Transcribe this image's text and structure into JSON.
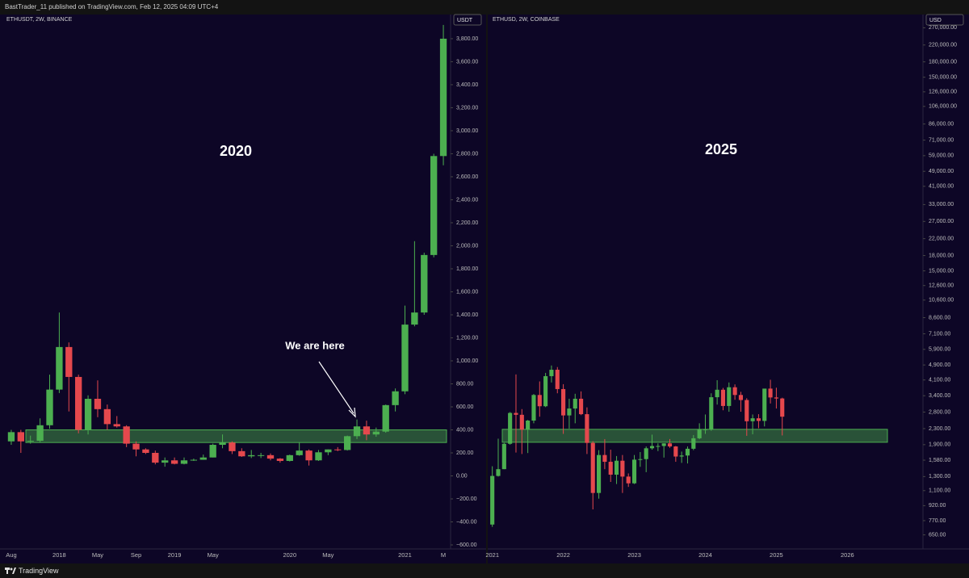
{
  "header": "BastTrader_11 published on TradingView.com, Feb 12, 2025 04:09 UTC+4",
  "footer": "TradingView",
  "chart_data": [
    {
      "type": "candlestick",
      "title": "ETHUSDT, 2W, BINANCE",
      "unit": "USDT",
      "log": false,
      "up_color": "#4caf50",
      "down_color": "#e5484d",
      "zone": [
        290,
        400
      ],
      "zone_color": "#4caf50",
      "annotations": [
        "2020",
        "We are here"
      ],
      "categories": [
        "Aug",
        null,
        null,
        null,
        null,
        "2018",
        null,
        null,
        null,
        "May",
        null,
        null,
        null,
        "Sep",
        null,
        null,
        null,
        "2019",
        null,
        null,
        null,
        "May",
        null,
        null,
        null,
        null,
        null,
        null,
        null,
        "2020",
        null,
        null,
        null,
        "May",
        null,
        null,
        null,
        null,
        null,
        null,
        null,
        "2021",
        null,
        null,
        null,
        "M"
      ],
      "open": [
        300,
        380,
        300,
        305,
        440,
        750,
        1120,
        860,
        400,
        670,
        580,
        450,
        430,
        280,
        230,
        200,
        115,
        135,
        105,
        135,
        140,
        160,
        270,
        290,
        215,
        170,
        180,
        180,
        150,
        130,
        180,
        220,
        135,
        205,
        230,
        225,
        345,
        430,
        360,
        385,
        615,
        735,
        1315,
        1420,
        1920,
        2780
      ],
      "high": [
        400,
        400,
        350,
        500,
        880,
        1420,
        1160,
        880,
        700,
        830,
        620,
        520,
        440,
        300,
        240,
        220,
        160,
        160,
        160,
        150,
        185,
        280,
        360,
        300,
        240,
        225,
        200,
        195,
        155,
        185,
        290,
        230,
        225,
        230,
        250,
        350,
        490,
        480,
        420,
        620,
        760,
        1480,
        2040,
        1940,
        2800,
        3920
      ],
      "low": [
        270,
        200,
        280,
        290,
        410,
        720,
        560,
        370,
        360,
        510,
        400,
        420,
        250,
        170,
        190,
        100,
        80,
        100,
        100,
        130,
        140,
        160,
        240,
        190,
        165,
        155,
        155,
        135,
        115,
        125,
        175,
        90,
        130,
        180,
        215,
        220,
        320,
        310,
        340,
        375,
        560,
        710,
        1300,
        1400,
        1900,
        2700
      ],
      "close": [
        380,
        300,
        305,
        440,
        750,
        1120,
        860,
        400,
        670,
        580,
        450,
        430,
        280,
        230,
        200,
        115,
        135,
        105,
        135,
        140,
        160,
        270,
        290,
        215,
        170,
        180,
        180,
        150,
        130,
        180,
        220,
        135,
        205,
        230,
        225,
        345,
        430,
        360,
        385,
        615,
        735,
        1315,
        1420,
        1920,
        2780,
        3800
      ],
      "ylim": [
        -635,
        4010
      ],
      "yticks": [
        {
          "value": -600,
          "label": "−600.00"
        },
        {
          "value": -400,
          "label": "−400.00"
        },
        {
          "value": -200,
          "label": "−200.00"
        },
        {
          "value": 0,
          "label": "0.00"
        },
        {
          "value": 200,
          "label": "200.00"
        },
        {
          "value": 400,
          "label": "400.00"
        },
        {
          "value": 600,
          "label": "600.00"
        },
        {
          "value": 800,
          "label": "800.00"
        },
        {
          "value": 1000,
          "label": "1,000.00"
        },
        {
          "value": 1200,
          "label": "1,200.00"
        },
        {
          "value": 1400,
          "label": "1,400.00"
        },
        {
          "value": 1600,
          "label": "1,600.00"
        },
        {
          "value": 1800,
          "label": "1,800.00"
        },
        {
          "value": 2000,
          "label": "2,000.00"
        },
        {
          "value": 2200,
          "label": "2,200.00"
        },
        {
          "value": 2400,
          "label": "2,400.00"
        },
        {
          "value": 2600,
          "label": "2,600.00"
        },
        {
          "value": 2800,
          "label": "2,800.00"
        },
        {
          "value": 3000,
          "label": "3,000.00"
        },
        {
          "value": 3200,
          "label": "3,200.00"
        },
        {
          "value": 3400,
          "label": "3,400.00"
        },
        {
          "value": 3600,
          "label": "3,600.00"
        },
        {
          "value": 3800,
          "label": "3,800.00"
        }
      ]
    },
    {
      "type": "candlestick",
      "title": "ETHUSD, 2W, COINBASE",
      "unit": "USD",
      "log": true,
      "up_color": "#4caf50",
      "down_color": "#e5484d",
      "zone": [
        1955,
        2280
      ],
      "zone_color": "#4caf50",
      "annotations": [
        "2025"
      ],
      "categories": [
        "2021",
        null,
        null,
        null,
        null,
        null,
        null,
        null,
        null,
        null,
        null,
        null,
        "2022",
        null,
        null,
        null,
        null,
        null,
        null,
        null,
        null,
        null,
        null,
        null,
        "2023",
        null,
        null,
        null,
        null,
        null,
        null,
        null,
        null,
        null,
        null,
        null,
        "2024",
        null,
        null,
        null,
        null,
        null,
        null,
        null,
        null,
        null,
        null,
        null,
        "2025",
        null,
        null,
        null,
        null,
        null,
        null,
        null,
        null,
        null,
        null,
        null,
        "2026"
      ],
      "open": [
        735,
        1310,
        1420,
        1920,
        2770,
        2710,
        2270,
        2530,
        3430,
        3000,
        4290,
        4630,
        3680,
        2690,
        2920,
        3280,
        2730,
        1940,
        1070,
        1680,
        1550,
        1330,
        1570,
        1300,
        1200,
        1590,
        1600,
        1820,
        1870,
        1870,
        1930,
        1860,
        1650,
        1670,
        1810,
        2050,
        2280,
        2280,
        3340,
        3650,
        3010,
        3760,
        3430,
        3230,
        2510,
        2600,
        2520,
        3700,
        3330,
        3290,
        null,
        null,
        null,
        null,
        null,
        null,
        null,
        null,
        null,
        null,
        null
      ],
      "high": [
        1470,
        2040,
        1940,
        2800,
        4380,
        2900,
        2550,
        3470,
        4030,
        4460,
        4870,
        4780,
        3900,
        3280,
        3480,
        3580,
        2960,
        1980,
        1780,
        2030,
        1790,
        1660,
        1680,
        1350,
        1680,
        1740,
        1860,
        2140,
        1930,
        1930,
        2030,
        1870,
        1750,
        1860,
        2130,
        2450,
        2720,
        3500,
        4090,
        3730,
        3980,
        3890,
        3560,
        3300,
        2720,
        2730,
        3680,
        4110,
        3740,
        3320,
        null,
        null,
        null,
        null,
        null,
        null,
        null,
        null,
        null,
        null,
        null
      ],
      "low": [
        715,
        1300,
        1420,
        1900,
        1730,
        1700,
        1720,
        2450,
        2650,
        2970,
        3980,
        3500,
        2160,
        2300,
        2450,
        2700,
        1700,
        880,
        1000,
        1420,
        1220,
        1190,
        1070,
        1150,
        1190,
        1460,
        1370,
        1790,
        1760,
        1630,
        1830,
        1550,
        1530,
        1520,
        1780,
        2030,
        2160,
        2240,
        3060,
        2860,
        2810,
        3240,
        2810,
        2110,
        2150,
        2310,
        2360,
        3100,
        2920,
        2120,
        null,
        null,
        null,
        null,
        null,
        null,
        null,
        null,
        null,
        null,
        null
      ],
      "close": [
        1310,
        1420,
        1920,
        2770,
        2710,
        2270,
        2530,
        3430,
        3000,
        4290,
        4630,
        3680,
        2690,
        2920,
        3280,
        2730,
        1940,
        1070,
        1680,
        1550,
        1330,
        1570,
        1300,
        1200,
        1590,
        1600,
        1820,
        1870,
        1870,
        1930,
        1860,
        1650,
        1670,
        1810,
        2050,
        2280,
        2280,
        3340,
        3650,
        3010,
        3760,
        3430,
        3230,
        2510,
        2600,
        2520,
        3700,
        3330,
        3290,
        2650,
        null,
        null,
        null,
        null,
        null,
        null,
        null,
        null,
        null,
        null,
        null
      ],
      "ylim": [
        550,
        316000
      ],
      "yticks": [
        {
          "value": 650,
          "label": "650.00"
        },
        {
          "value": 770,
          "label": "770.00"
        },
        {
          "value": 920,
          "label": "920.00"
        },
        {
          "value": 1100,
          "label": "1,100.00"
        },
        {
          "value": 1300,
          "label": "1,300.00"
        },
        {
          "value": 1580,
          "label": "1,580.00"
        },
        {
          "value": 1900,
          "label": "1,900.00"
        },
        {
          "value": 2300,
          "label": "2,300.00"
        },
        {
          "value": 2800,
          "label": "2,800.00"
        },
        {
          "value": 3400,
          "label": "3,400.00"
        },
        {
          "value": 4100,
          "label": "4,100.00"
        },
        {
          "value": 4900,
          "label": "4,900.00"
        },
        {
          "value": 5900,
          "label": "5,900.00"
        },
        {
          "value": 7100,
          "label": "7,100.00"
        },
        {
          "value": 8600,
          "label": "8,600.00"
        },
        {
          "value": 10600,
          "label": "10,600.00"
        },
        {
          "value": 12600,
          "label": "12,600.00"
        },
        {
          "value": 15000,
          "label": "15,000.00"
        },
        {
          "value": 18000,
          "label": "18,000.00"
        },
        {
          "value": 22000,
          "label": "22,000.00"
        },
        {
          "value": 27000,
          "label": "27,000.00"
        },
        {
          "value": 33000,
          "label": "33,000.00"
        },
        {
          "value": 41000,
          "label": "41,000.00"
        },
        {
          "value": 49000,
          "label": "49,000.00"
        },
        {
          "value": 59000,
          "label": "59,000.00"
        },
        {
          "value": 71000,
          "label": "71,000.00"
        },
        {
          "value": 86000,
          "label": "86,000.00"
        },
        {
          "value": 106000,
          "label": "106,000.00"
        },
        {
          "value": 126000,
          "label": "126,000.00"
        },
        {
          "value": 150000,
          "label": "150,000.00"
        },
        {
          "value": 180000,
          "label": "180,000.00"
        },
        {
          "value": 220000,
          "label": "220,000.00"
        },
        {
          "value": 270000,
          "label": "270,000.00"
        }
      ]
    }
  ]
}
